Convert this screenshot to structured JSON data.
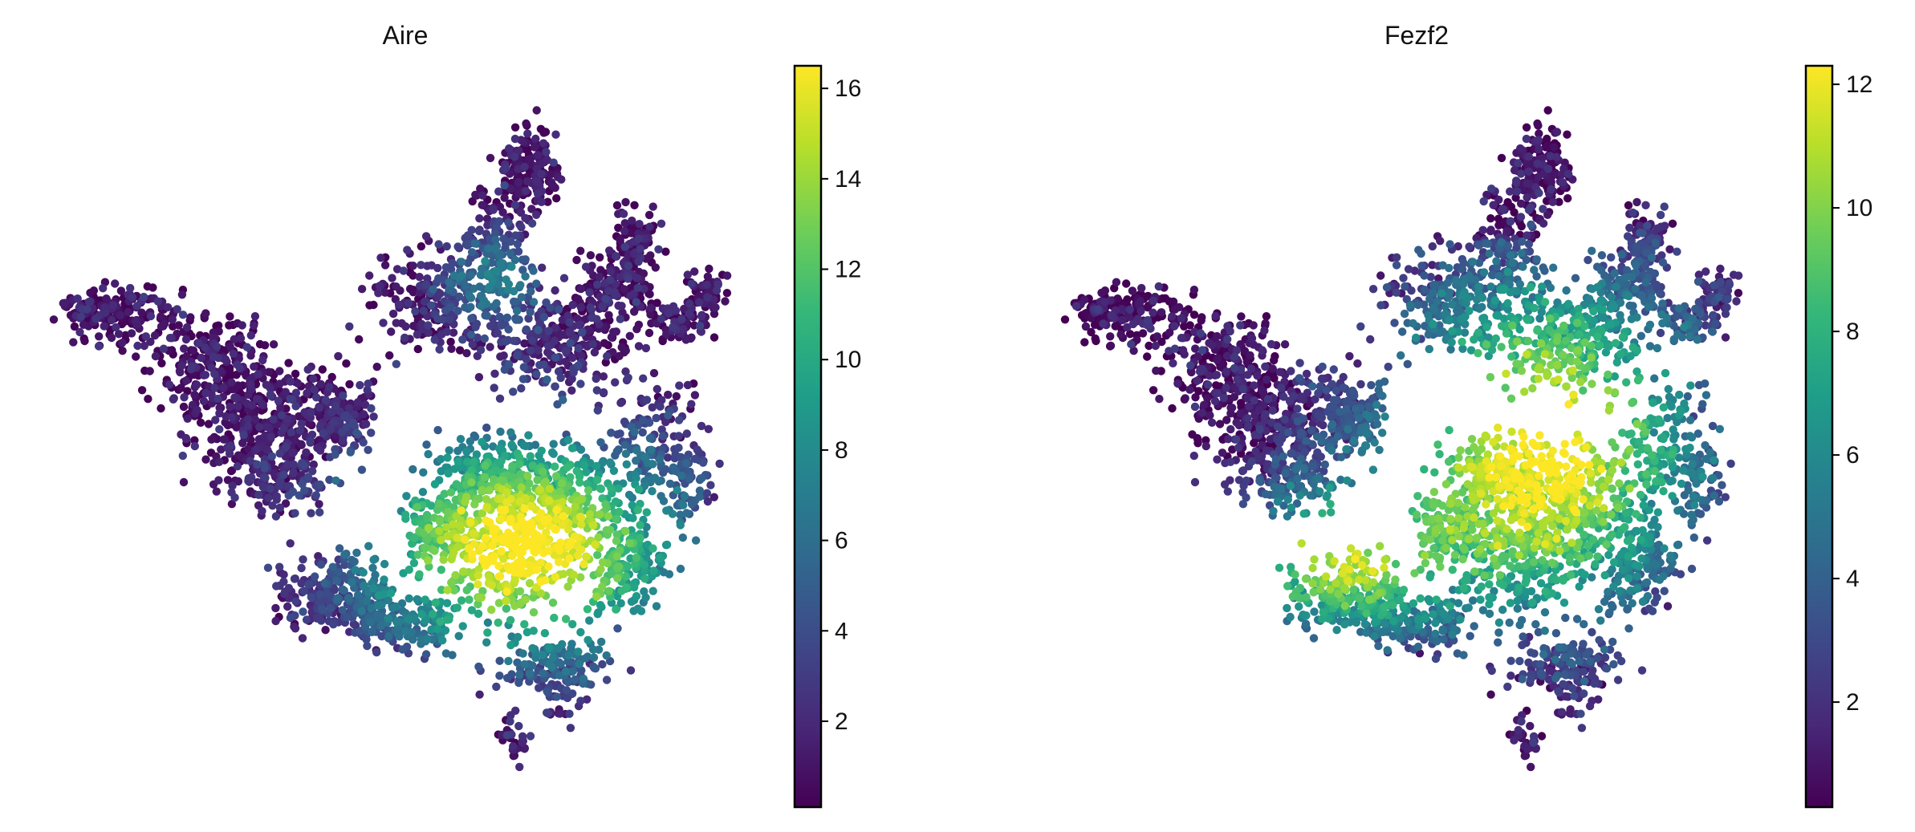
{
  "chart_data": [
    {
      "type": "scatter",
      "title": "Aire",
      "xlabel": "",
      "ylabel": "",
      "axes_visible": false,
      "grid": false,
      "colormap": "viridis",
      "colormap_stops": [
        "#440154",
        "#482878",
        "#3e4989",
        "#31688e",
        "#26828e",
        "#1f9e89",
        "#35b779",
        "#6ece58",
        "#b5de2b",
        "#fde725"
      ],
      "colorbar": {
        "position": "right",
        "range": [
          0.1,
          16.5
        ],
        "ticks": [
          2,
          4,
          6,
          8,
          10,
          12,
          14,
          16
        ],
        "tick_labels": [
          "2",
          "4",
          "6",
          "8",
          "10",
          "12",
          "14",
          "16"
        ]
      },
      "expression_pattern": "low across most of the embedding; highest (about 14–16.5) in the lower-center region, intermediate around it"
    },
    {
      "type": "scatter",
      "title": "Fezf2",
      "xlabel": "",
      "ylabel": "",
      "axes_visible": false,
      "grid": false,
      "colormap": "viridis",
      "colormap_stops": [
        "#440154",
        "#482878",
        "#3e4989",
        "#31688e",
        "#26828e",
        "#1f9e89",
        "#35b779",
        "#6ece58",
        "#b5de2b",
        "#fde725"
      ],
      "colorbar": {
        "position": "right",
        "range": [
          0.3,
          12.3
        ],
        "ticks": [
          2,
          4,
          6,
          8,
          10,
          12
        ],
        "tick_labels": [
          "2",
          "4",
          "6",
          "8",
          "10",
          "12"
        ]
      },
      "expression_pattern": "low in the left and top lobes; highest (about 10–12) in the central and lower-left regions"
    }
  ]
}
